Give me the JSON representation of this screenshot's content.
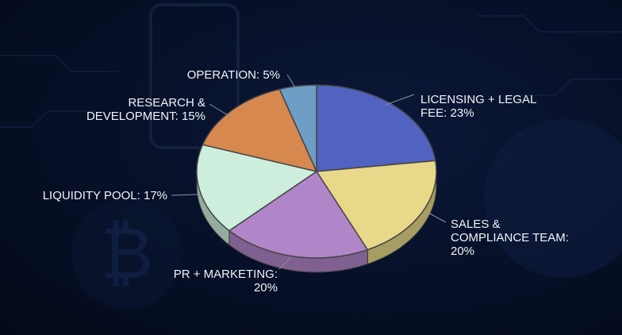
{
  "chart_data": {
    "type": "pie",
    "title": "",
    "slices": [
      {
        "label_lines": [
          "LICENSING + LEGAL",
          "FEE: 23%"
        ],
        "category": "LICENSING + LEGAL FEE",
        "value": 23,
        "color": "#5162c0"
      },
      {
        "label_lines": [
          "SALES &",
          "COMPLIANCE TEAM:",
          "20%"
        ],
        "category": "SALES & COMPLIANCE TEAM",
        "value": 20,
        "color": "#e8d889"
      },
      {
        "label_lines": [
          "PR + MARKETING:",
          "20%"
        ],
        "category": "PR + MARKETING",
        "value": 20,
        "color": "#b086c8"
      },
      {
        "label_lines": [
          "LIQUIDITY POOL: 17%"
        ],
        "category": "LIQUIDITY POOL",
        "value": 17,
        "color": "#cdeedd"
      },
      {
        "label_lines": [
          "RESEARCH &",
          "DEVELOPMENT: 15%"
        ],
        "category": "RESEARCH & DEVELOPMENT",
        "value": 15,
        "color": "#d6884f"
      },
      {
        "label_lines": [
          "OPERATION: 5%"
        ],
        "category": "OPERATION",
        "value": 5,
        "color": "#6e9ec6"
      }
    ],
    "style": "3d-tilted",
    "start_angle": "12 o'clock",
    "direction": "clockwise",
    "legend": "none",
    "labels": "outside with leader lines"
  }
}
